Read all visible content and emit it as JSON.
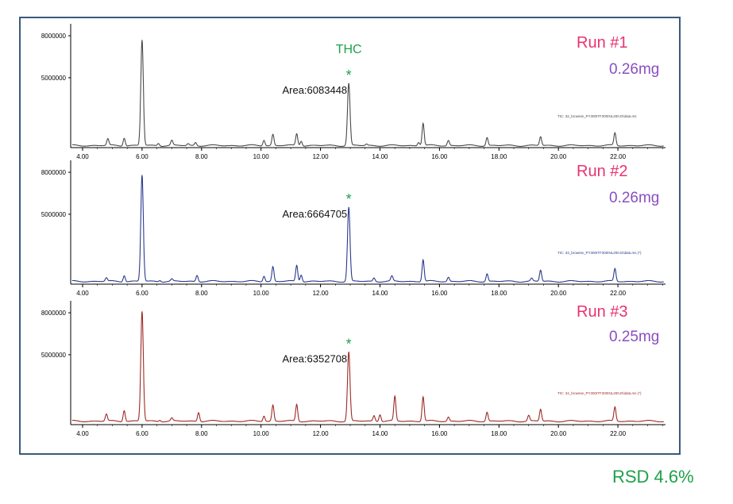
{
  "summary": {
    "rsd_label": "RSD 4.6%"
  },
  "compound": {
    "name": "THC",
    "marker": "*"
  },
  "chart_data": [
    {
      "type": "line",
      "run_label": "Run #1",
      "mass": "0.26mg",
      "area_label": "Area:6083448",
      "tic_label": "TIC: 32_brownie_PY300ITF300INL200.D\\data.ms",
      "color": "#4a4a4a",
      "xlim": [
        3.6,
        23.6
      ],
      "ylim": [
        0,
        8400000
      ],
      "x_ticks": [
        "4.00",
        "6.00",
        "8.00",
        "10.00",
        "12.00",
        "14.00",
        "16.00",
        "18.00",
        "20.00",
        "22.00"
      ],
      "y_ticks": [
        "5000000",
        "8000000"
      ],
      "baseline": 150000,
      "peaks": [
        {
          "x": 4.85,
          "y": 620000
        },
        {
          "x": 5.4,
          "y": 720000
        },
        {
          "x": 6.0,
          "y": 7700000
        },
        {
          "x": 6.55,
          "y": 330000
        },
        {
          "x": 7.0,
          "y": 500000
        },
        {
          "x": 7.55,
          "y": 280000
        },
        {
          "x": 7.8,
          "y": 380000
        },
        {
          "x": 10.1,
          "y": 560000
        },
        {
          "x": 10.4,
          "y": 950000
        },
        {
          "x": 11.2,
          "y": 1000000
        },
        {
          "x": 11.35,
          "y": 500000
        },
        {
          "x": 12.95,
          "y": 4600000
        },
        {
          "x": 13.55,
          "y": 250000
        },
        {
          "x": 15.3,
          "y": 400000
        },
        {
          "x": 15.45,
          "y": 1750000
        },
        {
          "x": 16.3,
          "y": 520000
        },
        {
          "x": 17.6,
          "y": 730000
        },
        {
          "x": 19.4,
          "y": 780000
        },
        {
          "x": 21.9,
          "y": 1050000
        }
      ]
    },
    {
      "type": "line",
      "run_label": "Run #2",
      "mass": "0.26mg",
      "area_label": "Area:6664705",
      "tic_label": "TIC: 33_brownie_PY300ITF300INL200.D\\data.ms (*)",
      "color": "#2b3a8f",
      "xlim": [
        3.6,
        23.6
      ],
      "ylim": [
        0,
        8400000
      ],
      "x_ticks": [
        "4.00",
        "6.00",
        "8.00",
        "10.00",
        "12.00",
        "14.00",
        "16.00",
        "18.00",
        "20.00",
        "22.00"
      ],
      "y_ticks": [
        "5000000",
        "8000000"
      ],
      "baseline": 200000,
      "peaks": [
        {
          "x": 4.8,
          "y": 450000
        },
        {
          "x": 5.4,
          "y": 650000
        },
        {
          "x": 6.0,
          "y": 7800000
        },
        {
          "x": 6.6,
          "y": 300000
        },
        {
          "x": 7.0,
          "y": 350000
        },
        {
          "x": 7.85,
          "y": 650000
        },
        {
          "x": 10.1,
          "y": 600000
        },
        {
          "x": 10.4,
          "y": 1250000
        },
        {
          "x": 11.2,
          "y": 1350000
        },
        {
          "x": 11.35,
          "y": 700000
        },
        {
          "x": 12.95,
          "y": 5500000
        },
        {
          "x": 13.8,
          "y": 450000
        },
        {
          "x": 14.4,
          "y": 550000
        },
        {
          "x": 15.45,
          "y": 1750000
        },
        {
          "x": 16.3,
          "y": 500000
        },
        {
          "x": 17.6,
          "y": 750000
        },
        {
          "x": 19.1,
          "y": 400000
        },
        {
          "x": 19.4,
          "y": 1000000
        },
        {
          "x": 21.9,
          "y": 1100000
        }
      ]
    },
    {
      "type": "line",
      "run_label": "Run #3",
      "mass": "0.25mg",
      "area_label": "Area:6352708",
      "tic_label": "TIC: 34_brownie_PY300ITF300INL200.D\\data.ms (*)",
      "color": "#9e2a24",
      "xlim": [
        3.6,
        23.6
      ],
      "ylim": [
        0,
        8400000
      ],
      "x_ticks": [
        "4.00",
        "6.00",
        "8.00",
        "10.00",
        "12.00",
        "14.00",
        "16.00",
        "18.00",
        "20.00",
        "22.00"
      ],
      "y_ticks": [
        "5000000",
        "8000000"
      ],
      "baseline": 250000,
      "peaks": [
        {
          "x": 4.8,
          "y": 750000
        },
        {
          "x": 5.4,
          "y": 1050000
        },
        {
          "x": 6.0,
          "y": 8100000
        },
        {
          "x": 6.6,
          "y": 350000
        },
        {
          "x": 7.0,
          "y": 450000
        },
        {
          "x": 7.9,
          "y": 900000
        },
        {
          "x": 10.1,
          "y": 650000
        },
        {
          "x": 10.4,
          "y": 1400000
        },
        {
          "x": 11.2,
          "y": 1450000
        },
        {
          "x": 12.95,
          "y": 5200000
        },
        {
          "x": 13.8,
          "y": 650000
        },
        {
          "x": 14.0,
          "y": 750000
        },
        {
          "x": 14.5,
          "y": 2000000
        },
        {
          "x": 15.45,
          "y": 2000000
        },
        {
          "x": 16.3,
          "y": 550000
        },
        {
          "x": 17.6,
          "y": 900000
        },
        {
          "x": 19.0,
          "y": 650000
        },
        {
          "x": 19.4,
          "y": 1100000
        },
        {
          "x": 21.9,
          "y": 1250000
        }
      ]
    }
  ]
}
